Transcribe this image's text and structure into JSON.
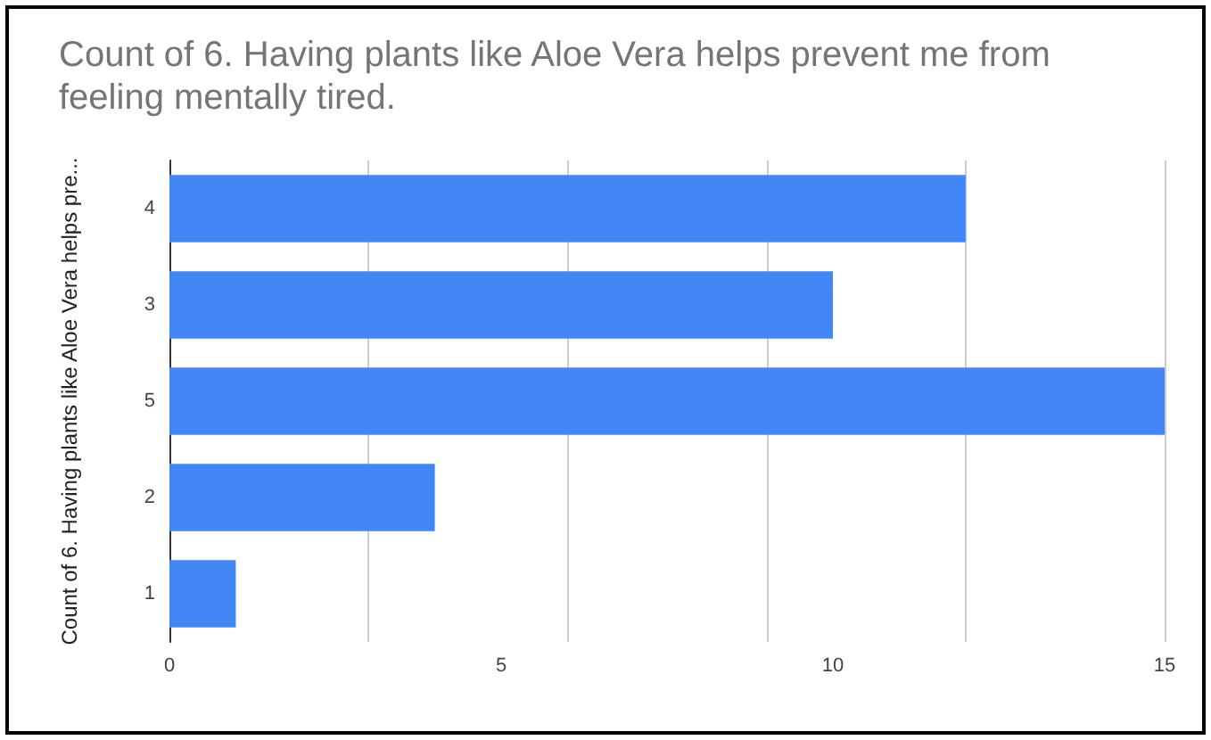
{
  "chart_data": {
    "type": "bar",
    "orientation": "horizontal",
    "title": "Count of 6. Having plants like Aloe Vera helps prevent me from feeling mentally tired.",
    "ylabel": "Count of 6. Having plants like Aloe Vera helps pre...",
    "categories": [
      "4",
      "3",
      "5",
      "2",
      "1"
    ],
    "values": [
      12,
      10,
      15,
      4,
      1
    ],
    "color": "#4285f4",
    "xlim": [
      0,
      15
    ],
    "xticks": [
      0,
      5,
      10,
      15
    ],
    "grid": "x"
  }
}
